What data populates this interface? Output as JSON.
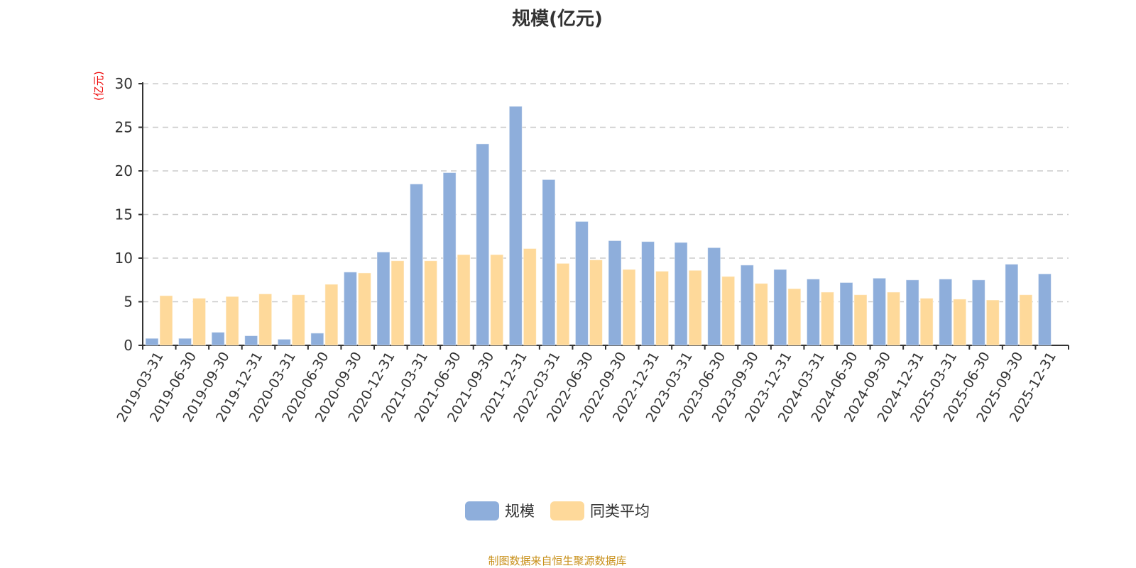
{
  "chart_data": {
    "type": "bar",
    "title": "规模(亿元)",
    "ylabel": "(亿元)",
    "xlabel": "",
    "ylim": [
      0,
      30
    ],
    "yticks": [
      0,
      5,
      10,
      15,
      20,
      25,
      30
    ],
    "grid": true,
    "legend_placement": "bottom-center",
    "categories": [
      "2019-03-31",
      "2019-06-30",
      "2019-09-30",
      "2019-12-31",
      "2020-03-31",
      "2020-06-30",
      "2020-09-30",
      "2020-12-31",
      "2021-03-31",
      "2021-06-30",
      "2021-09-30",
      "2021-12-31",
      "2022-03-31",
      "2022-06-30",
      "2022-09-30",
      "2022-12-31",
      "2023-03-31",
      "2023-06-30",
      "2023-09-30",
      "2023-12-31",
      "2024-03-31",
      "2024-06-30",
      "2024-09-30",
      "2024-12-31",
      "2025-03-31",
      "2025-06-30",
      "2025-09-30",
      "2025-12-31"
    ],
    "series": [
      {
        "name": "规模",
        "color": "#8eaedb",
        "values": [
          0.8,
          0.8,
          1.5,
          1.1,
          0.7,
          1.4,
          8.4,
          10.7,
          18.5,
          19.8,
          23.1,
          27.4,
          19.0,
          14.2,
          12.0,
          11.9,
          11.8,
          11.2,
          9.2,
          8.7,
          7.6,
          7.2,
          7.7,
          7.5,
          7.6,
          7.5,
          9.3,
          8.2
        ]
      },
      {
        "name": "同类平均",
        "color": "#fed99a",
        "values": [
          5.7,
          5.4,
          5.6,
          5.9,
          5.8,
          7.0,
          8.3,
          9.7,
          9.7,
          10.4,
          10.4,
          11.1,
          9.4,
          9.8,
          8.7,
          8.5,
          8.6,
          7.9,
          7.1,
          6.5,
          6.1,
          5.8,
          6.1,
          5.4,
          5.3,
          5.2,
          5.8,
          null
        ]
      }
    ]
  },
  "source": "制图数据来自恒生聚源数据库"
}
